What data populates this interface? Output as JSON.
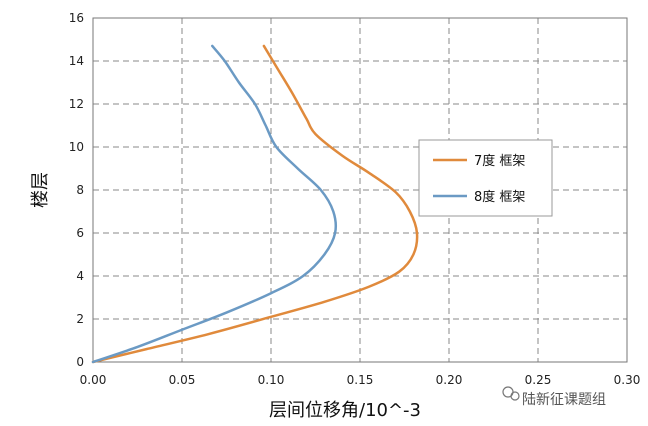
{
  "chart_data": {
    "type": "line",
    "xlabel": "层间位移角/10^-3",
    "ylabel": "楼层",
    "xlim": [
      0,
      0.3
    ],
    "ylim": [
      0,
      16
    ],
    "x_ticks": [
      "0.00",
      "0.05",
      "0.10",
      "0.15",
      "0.20",
      "0.25",
      "0.30"
    ],
    "y_ticks": [
      "0",
      "2",
      "4",
      "6",
      "8",
      "10",
      "12",
      "14",
      "16"
    ],
    "grid": true,
    "legend_position": "right",
    "series": [
      {
        "name": "7度 框架",
        "color": "#e08a3c",
        "points": [
          [
            0.0,
            0.0
          ],
          [
            0.03,
            0.6
          ],
          [
            0.065,
            1.3
          ],
          [
            0.1,
            2.1
          ],
          [
            0.13,
            2.8
          ],
          [
            0.155,
            3.5
          ],
          [
            0.172,
            4.2
          ],
          [
            0.18,
            5.0
          ],
          [
            0.182,
            6.0
          ],
          [
            0.178,
            7.0
          ],
          [
            0.17,
            7.9
          ],
          [
            0.155,
            8.8
          ],
          [
            0.14,
            9.6
          ],
          [
            0.125,
            10.6
          ],
          [
            0.12,
            11.3
          ],
          [
            0.112,
            12.5
          ],
          [
            0.104,
            13.6
          ],
          [
            0.096,
            14.7
          ]
        ]
      },
      {
        "name": "8度 框架",
        "color": "#6b9ac4",
        "points": [
          [
            0.0,
            0.0
          ],
          [
            0.025,
            0.7
          ],
          [
            0.05,
            1.5
          ],
          [
            0.075,
            2.3
          ],
          [
            0.1,
            3.2
          ],
          [
            0.118,
            4.0
          ],
          [
            0.13,
            5.0
          ],
          [
            0.136,
            6.0
          ],
          [
            0.135,
            7.0
          ],
          [
            0.128,
            8.0
          ],
          [
            0.115,
            9.0
          ],
          [
            0.103,
            10.0
          ],
          [
            0.097,
            11.0
          ],
          [
            0.091,
            12.0
          ],
          [
            0.082,
            13.0
          ],
          [
            0.074,
            14.0
          ],
          [
            0.067,
            14.7
          ]
        ]
      }
    ]
  },
  "watermark": {
    "text": "陆新征课题组",
    "icon": "wechat-icon"
  }
}
